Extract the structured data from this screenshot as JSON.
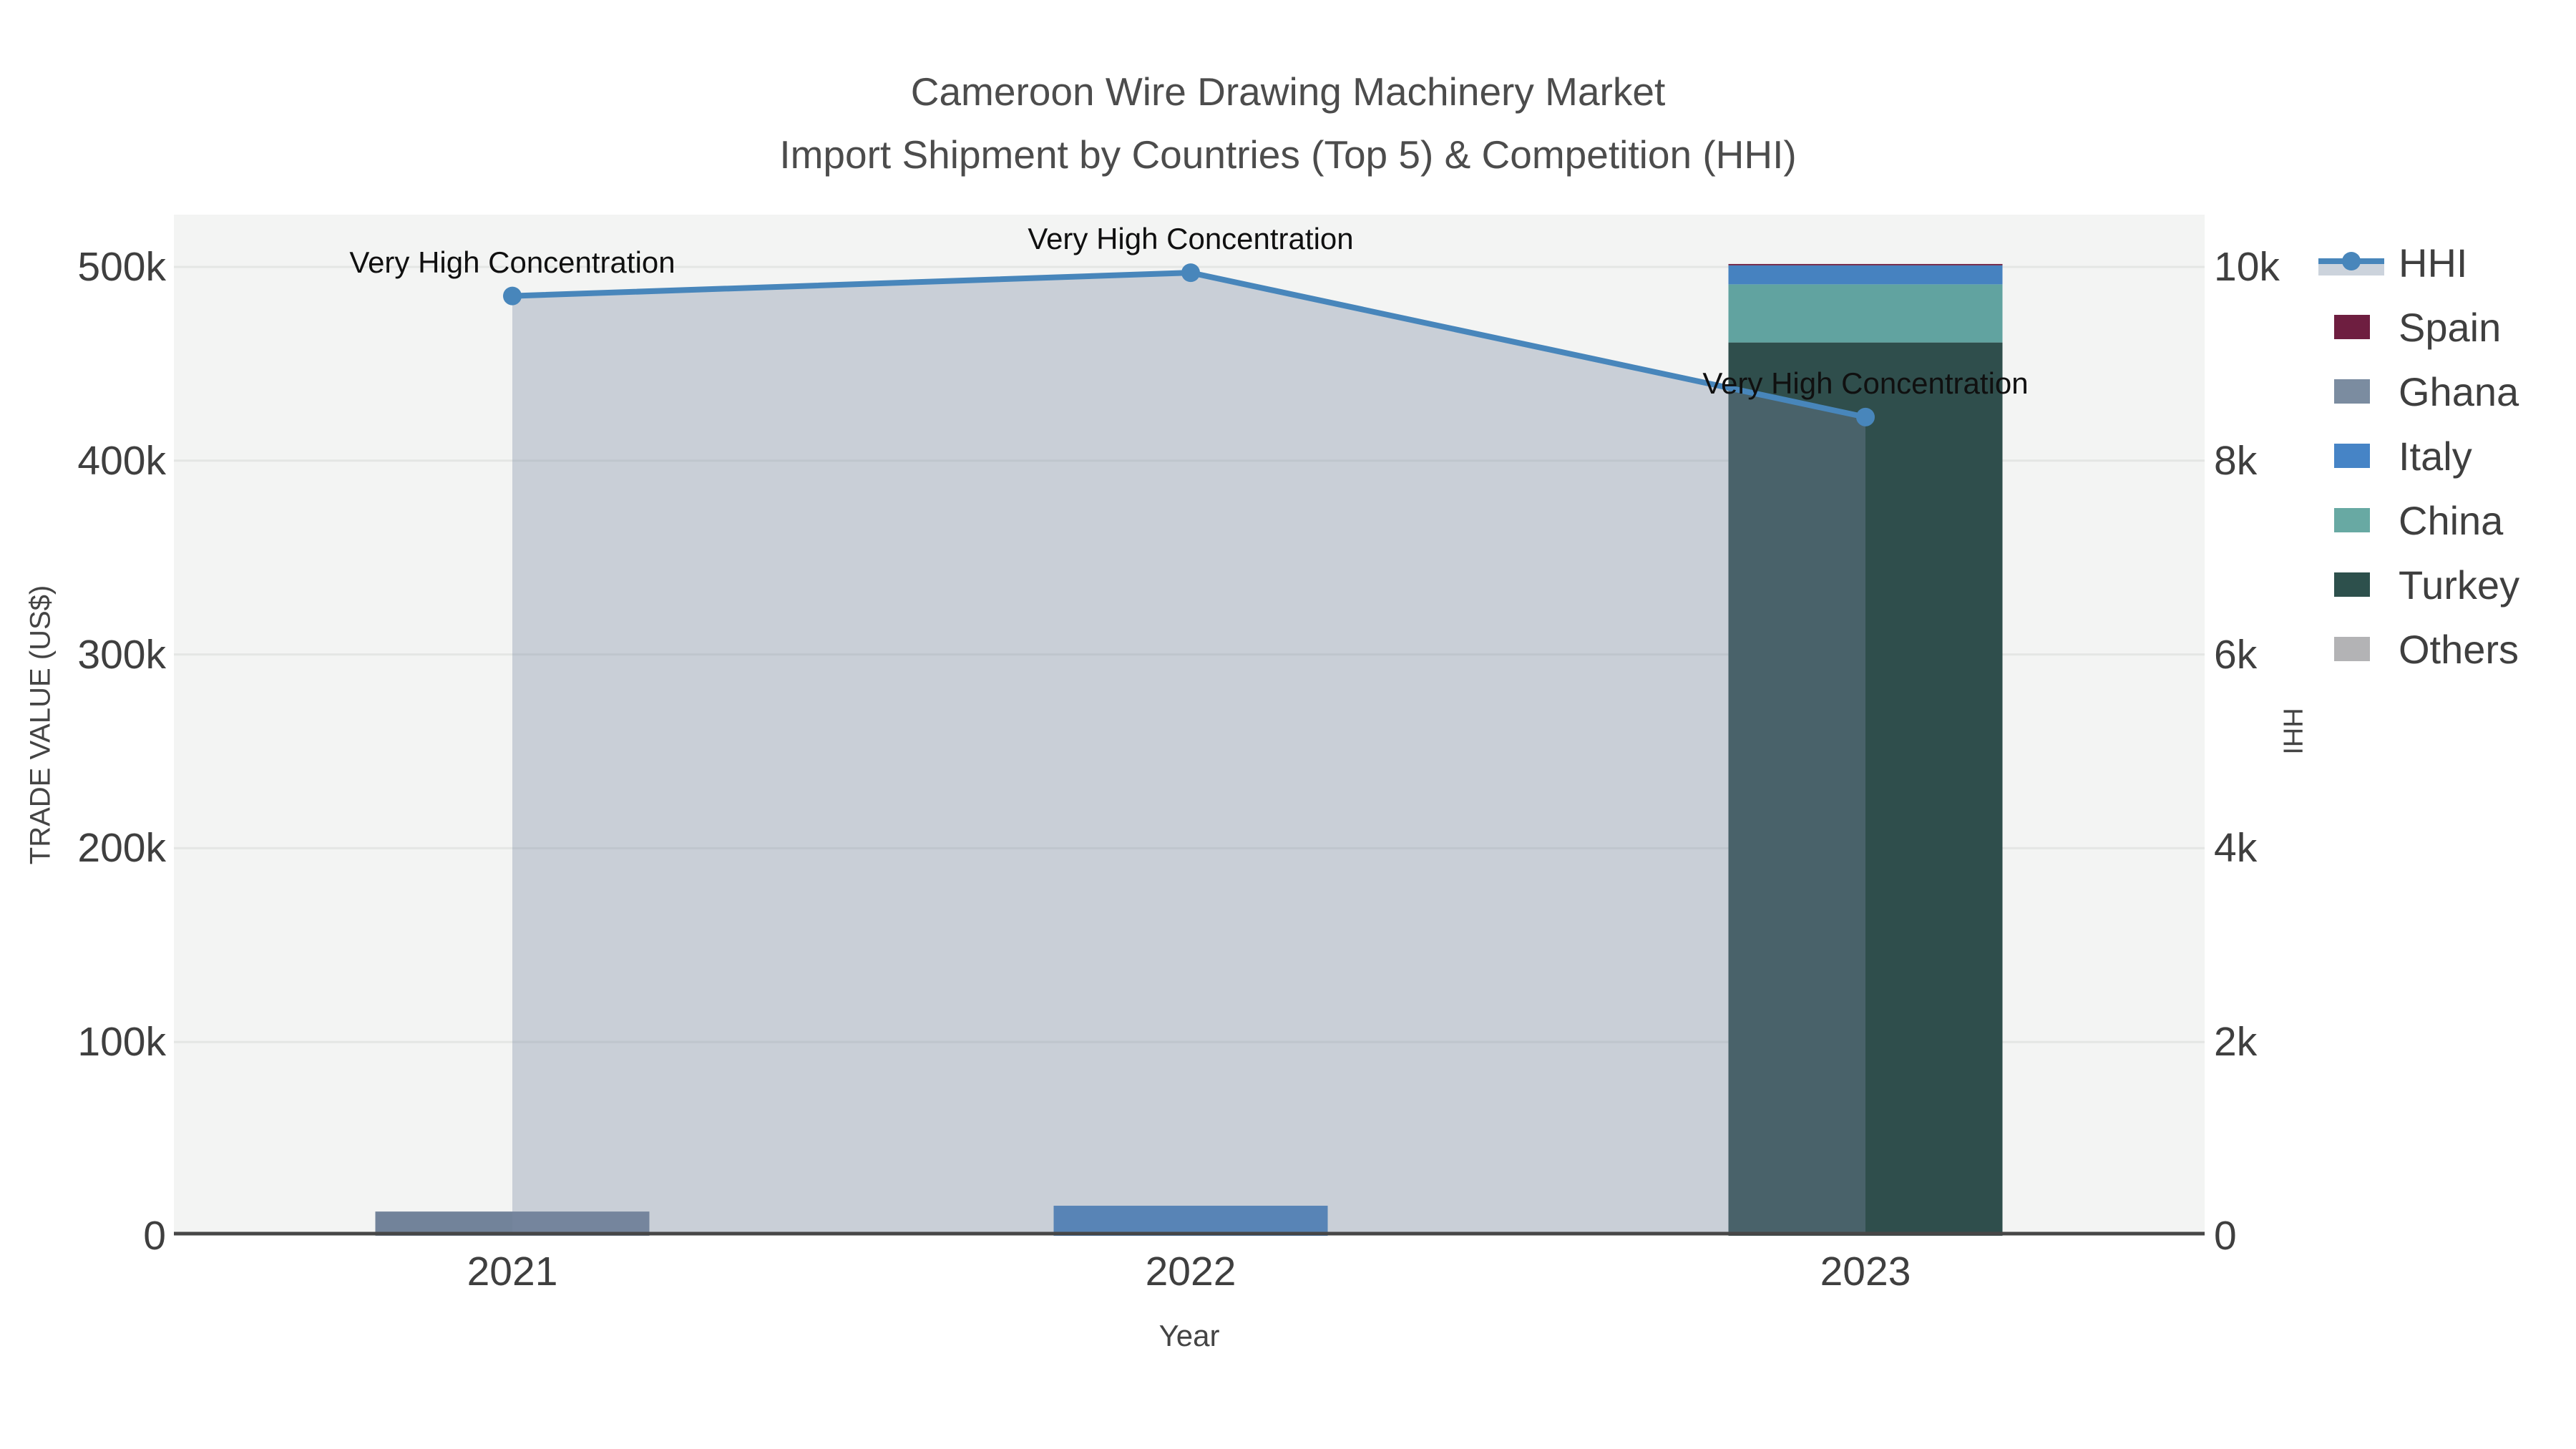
{
  "title": {
    "line1": "Cameroon Wire Drawing Machinery Market",
    "line2": "Import Shipment by Countries (Top 5) & Competition (HHI)"
  },
  "axes": {
    "x": {
      "title": "Year",
      "tick_labels": [
        "2021",
        "2022",
        "2023"
      ]
    },
    "y_left": {
      "title": "TRADE VALUE (US$)",
      "tick_labels": [
        "0",
        "100k",
        "200k",
        "300k",
        "400k",
        "500k"
      ]
    },
    "y_right": {
      "title": "HHI",
      "tick_labels": [
        "0",
        "2k",
        "4k",
        "6k",
        "8k",
        "10k"
      ]
    }
  },
  "legend": {
    "entries": [
      {
        "label": "HHI",
        "type": "line",
        "color": "#4886bb"
      },
      {
        "label": "Spain",
        "type": "swatch",
        "color": "#6e1e40"
      },
      {
        "label": "Ghana",
        "type": "swatch",
        "color": "#7b8ca0"
      },
      {
        "label": "Italy",
        "type": "swatch",
        "color": "#4684c6"
      },
      {
        "label": "China",
        "type": "swatch",
        "color": "#68a9a3"
      },
      {
        "label": "Turkey",
        "type": "swatch",
        "color": "#2d504c"
      },
      {
        "label": "Others",
        "type": "swatch",
        "color": "#b3b3b5"
      }
    ]
  },
  "chart_data": {
    "type": "bar+line",
    "categories": [
      "2021",
      "2022",
      "2023"
    ],
    "bar_unit": "US$",
    "series": [
      {
        "name": "Turkey",
        "color": "#2f4e4c",
        "values": [
          0,
          0,
          461000
        ]
      },
      {
        "name": "China",
        "color": "#61a3a0",
        "values": [
          0,
          0,
          30000
        ]
      },
      {
        "name": "Italy",
        "color": "#4682c0",
        "values": [
          0,
          15500,
          9800
        ]
      },
      {
        "name": "Ghana",
        "color": "#72839a",
        "values": [
          12500,
          0,
          0
        ]
      },
      {
        "name": "Spain",
        "color": "#6e1e40",
        "values": [
          0,
          0,
          700
        ]
      },
      {
        "name": "Others",
        "color": "#b3b3b5",
        "values": [
          0,
          0,
          0
        ]
      }
    ],
    "line_series": {
      "name": "HHI",
      "axis": "right",
      "color": "#4886bb",
      "fill_color": "rgba(124,138,164,0.35)",
      "values": [
        9700,
        9940,
        8450
      ]
    },
    "annotations": [
      {
        "text": "Very High Concentration",
        "category_index": 0
      },
      {
        "text": "Very High Concentration",
        "category_index": 1
      },
      {
        "text": "Very High Concentration",
        "category_index": 2
      }
    ],
    "title": "Cameroon Wire Drawing Machinery Market — Import Shipment by Countries (Top 5) & Competition (HHI)",
    "xlabel": "Year",
    "ylabel_left": "TRADE VALUE (US$)",
    "ylabel_right": "HHI",
    "ylim_left": [
      0,
      500000
    ],
    "ylim_right": [
      0,
      10000
    ],
    "grid": true,
    "legend_position": "right"
  }
}
